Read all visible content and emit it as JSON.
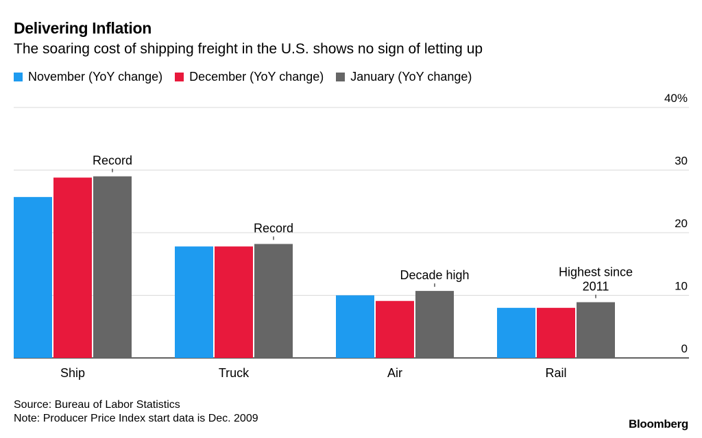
{
  "header": {
    "title": "Delivering Inflation",
    "subtitle": "The soaring cost of shipping freight in the U.S. shows no sign of letting up"
  },
  "chart_data": {
    "type": "bar",
    "title": "Delivering Inflation",
    "subtitle": "The soaring cost of shipping freight in the U.S. shows no sign of letting up",
    "categories": [
      "Ship",
      "Truck",
      "Air",
      "Rail"
    ],
    "series": [
      {
        "name": "November (YoY change)",
        "color": "#1e9bf0",
        "values": [
          25.7,
          17.8,
          10.0,
          8.0
        ]
      },
      {
        "name": "December (YoY change)",
        "color": "#e8193c",
        "values": [
          28.8,
          17.8,
          9.1,
          8.0
        ]
      },
      {
        "name": "January (YoY change)",
        "color": "#666666",
        "values": [
          29.0,
          18.2,
          10.7,
          8.9
        ]
      }
    ],
    "ylim": [
      0,
      40
    ],
    "yticks": [
      "0",
      "10",
      "20",
      "30",
      "40%"
    ],
    "y_axis_side": "right",
    "grid": true,
    "legend_position": "top-left",
    "annotations": [
      {
        "category": "Ship",
        "series": "January (YoY change)",
        "lines": [
          "Record"
        ]
      },
      {
        "category": "Truck",
        "series": "January (YoY change)",
        "lines": [
          "Record"
        ]
      },
      {
        "category": "Air",
        "series": "January (YoY change)",
        "lines": [
          "Decade high"
        ]
      },
      {
        "category": "Rail",
        "series": "January (YoY change)",
        "lines": [
          "Highest since",
          "2011"
        ]
      }
    ]
  },
  "footer": {
    "source": "Source: Bureau of Labor Statistics",
    "note": "Note: Producer Price Index start data is Dec. 2009",
    "brand": "Bloomberg"
  }
}
